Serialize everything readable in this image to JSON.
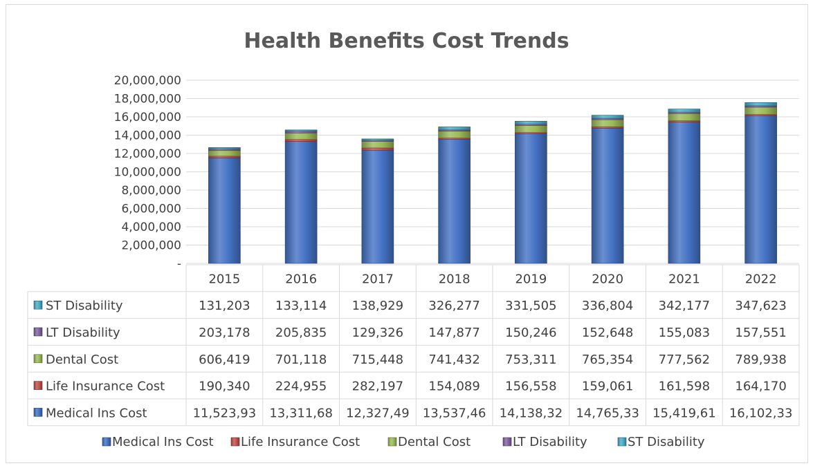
{
  "chart_data": {
    "type": "bar",
    "stacked": true,
    "title": "Health Benefits Cost Trends",
    "categories": [
      "2015",
      "2016",
      "2017",
      "2018",
      "2019",
      "2020",
      "2021",
      "2022"
    ],
    "ylim": [
      0,
      20000000
    ],
    "yticks": [
      "20,000,000",
      "18,000,000",
      "16,000,000",
      "14,000,000",
      "12,000,000",
      "10,000,000",
      "8,000,000",
      "6,000,000",
      "4,000,000",
      "2,000,000",
      "-"
    ],
    "grid": true,
    "legend_position": "bottom",
    "series": [
      {
        "name": "Medical Ins Cost",
        "color": "#4472c4",
        "values": [
          11523930,
          13311680,
          12327490,
          13537460,
          14138320,
          14765330,
          15419610,
          16102330
        ],
        "labels": [
          "11,523,93",
          "13,311,68",
          "12,327,49",
          "13,537,46",
          "14,138,32",
          "14,765,33",
          "15,419,61",
          "16,102,33"
        ]
      },
      {
        "name": "Life Insurance Cost",
        "color": "#c0504d",
        "values": [
          190340,
          224955,
          282197,
          154089,
          156558,
          159061,
          161598,
          164170
        ],
        "labels": [
          "190,340",
          "224,955",
          "282,197",
          "154,089",
          "156,558",
          "159,061",
          "161,598",
          "164,170"
        ]
      },
      {
        "name": "Dental Cost",
        "color": "#9bbb59",
        "values": [
          606419,
          701118,
          715448,
          741432,
          753311,
          765354,
          777562,
          789938
        ],
        "labels": [
          "606,419",
          "701,118",
          "715,448",
          "741,432",
          "753,311",
          "765,354",
          "777,562",
          "789,938"
        ]
      },
      {
        "name": "LT Disability",
        "color": "#8064a2",
        "values": [
          203178,
          205835,
          129326,
          147877,
          150246,
          152648,
          155083,
          157551
        ],
        "labels": [
          "203,178",
          "205,835",
          "129,326",
          "147,877",
          "150,246",
          "152,648",
          "155,083",
          "157,551"
        ]
      },
      {
        "name": "ST Disability",
        "color": "#4bacc6",
        "values": [
          131203,
          133114,
          138929,
          326277,
          331505,
          336804,
          342177,
          347623
        ],
        "labels": [
          "131,203",
          "133,114",
          "138,929",
          "326,277",
          "331,505",
          "336,804",
          "342,177",
          "347,623"
        ]
      }
    ]
  }
}
